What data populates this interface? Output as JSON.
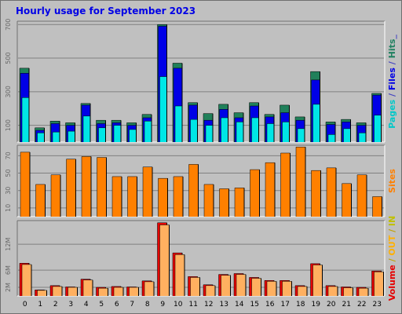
{
  "title": "Hourly usage for September 2023",
  "chart_data": {
    "type": "bar",
    "categories": [
      "0",
      "1",
      "2",
      "3",
      "4",
      "5",
      "6",
      "7",
      "8",
      "9",
      "10",
      "11",
      "12",
      "13",
      "14",
      "15",
      "16",
      "17",
      "18",
      "19",
      "20",
      "21",
      "22",
      "23"
    ],
    "panels": [
      {
        "id": "pages-files-hits",
        "ylim": [
          0,
          720
        ],
        "ticks": [
          100,
          300,
          500,
          700
        ],
        "legend": [
          {
            "text": "Pages",
            "color": "#00c8c8"
          },
          {
            "text": " / ",
            "color": "#4040c0"
          },
          {
            "text": "Files",
            "color": "#0000e6"
          },
          {
            "text": " / ",
            "color": "#4040c0"
          },
          {
            "text": "Hits",
            "color": "#208060"
          },
          {
            "text": "_",
            "color": "#4040c0"
          }
        ],
        "series": [
          {
            "name": "Hits",
            "color": "#20805a",
            "values": [
              440,
              85,
              125,
              115,
              230,
              130,
              130,
              115,
              165,
              700,
              470,
              235,
              170,
              225,
              175,
              235,
              165,
              220,
              150,
              420,
              120,
              135,
              115,
              290
            ]
          },
          {
            "name": "Files",
            "color": "#0000e6",
            "values": [
              410,
              70,
              110,
              100,
              220,
              110,
              115,
              100,
              145,
              690,
              440,
              220,
              130,
              195,
              145,
              215,
              150,
              175,
              130,
              370,
              105,
              120,
              100,
              280
            ]
          },
          {
            "name": "Pages",
            "color": "#00e6e6",
            "values": [
              265,
              55,
              60,
              65,
              155,
              85,
              100,
              75,
              125,
              390,
              215,
              135,
              100,
              145,
              120,
              145,
              110,
              120,
              80,
              225,
              45,
              80,
              55,
              160
            ]
          }
        ]
      },
      {
        "id": "sites",
        "ylim": [
          0,
          82
        ],
        "ticks": [
          10,
          30,
          50,
          70
        ],
        "legend": [
          {
            "text": "Sites",
            "color": "#ff8000"
          }
        ],
        "series": [
          {
            "name": "Sites",
            "color": "#ff8000",
            "values": [
              74,
              37,
              48,
              66,
              69,
              68,
              46,
              46,
              57,
              44,
              46,
              60,
              37,
              32,
              33,
              54,
              62,
              73,
              80,
              53,
              56,
              38,
              48,
              23
            ]
          }
        ]
      },
      {
        "id": "volume",
        "ylim": [
          0,
          17.5
        ],
        "ticks_m": [
          2,
          6,
          12
        ],
        "tick_labels": [
          "2M",
          "6M",
          "12M"
        ],
        "legend": [
          {
            "text": "Volume",
            "color": "#e60000"
          },
          {
            "text": " / ",
            "color": "#c0a000"
          },
          {
            "text": "OUT",
            "color": "#ffb000"
          },
          {
            "text": " / ",
            "color": "#c0a000"
          },
          {
            "text": "IN",
            "color": "#c0c000"
          }
        ],
        "series": [
          {
            "name": "Volume",
            "color": "#e60000",
            "values": [
              7.6,
              1.4,
              2.4,
              2.1,
              3.9,
              2.0,
              2.2,
              2.1,
              3.5,
              17.0,
              10.0,
              4.5,
              2.6,
              5.0,
              5.2,
              4.3,
              3.6,
              3.6,
              2.4,
              7.5,
              2.4,
              2.1,
              2.0,
              5.8
            ]
          },
          {
            "name": "OUT",
            "color": "#ffb060",
            "values": [
              7.3,
              1.3,
              2.2,
              2.0,
              3.7,
              1.8,
              2.0,
              2.0,
              3.3,
              16.5,
              9.6,
              4.3,
              2.4,
              4.8,
              5.0,
              4.1,
              3.4,
              3.4,
              2.2,
              7.2,
              2.2,
              1.9,
              1.8,
              5.6
            ]
          }
        ]
      }
    ]
  }
}
